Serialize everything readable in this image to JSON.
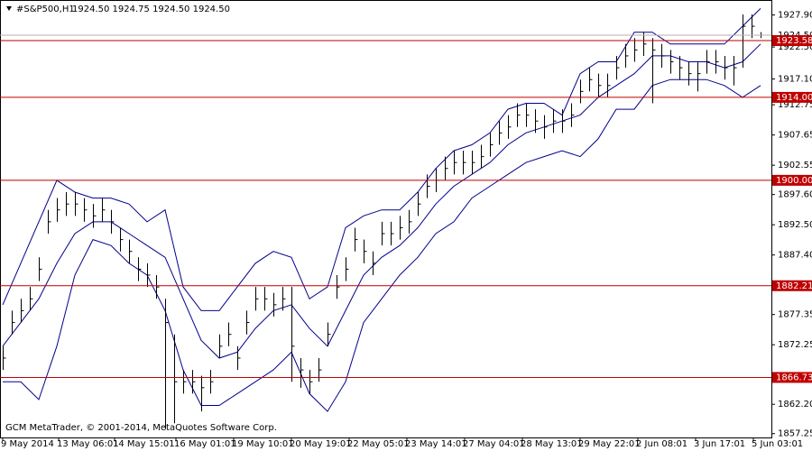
{
  "chart_data": {
    "type": "ohlc",
    "symbol": "#S&P500,H1",
    "quote": "1924.50 1924.75 1924.50 1924.50",
    "footer": "GCM MetaTrader, © 2001-2014, MetaQuotes Software Corp.",
    "bar_color": "#000000",
    "band_color": "#00008b",
    "level_color": "#c00000",
    "grid": false,
    "xlim": [
      -1.5,
      426
    ],
    "ylim": [
      1856.6,
      1930.43
    ],
    "xticks": [
      {
        "value": 0,
        "label": "9 May 2014"
      },
      {
        "value": 31,
        "label": "13 May 06:01"
      },
      {
        "value": 62,
        "label": "14 May 15:01"
      },
      {
        "value": 96,
        "label": "16 May 01:01"
      },
      {
        "value": 128,
        "label": "19 May 10:01"
      },
      {
        "value": 160,
        "label": "20 May 19:01"
      },
      {
        "value": 192,
        "label": "22 May 05:01"
      },
      {
        "value": 224,
        "label": "23 May 14:01"
      },
      {
        "value": 256,
        "label": "27 May 04:01"
      },
      {
        "value": 288,
        "label": "28 May 13:01"
      },
      {
        "value": 320,
        "label": "29 May 22:01"
      },
      {
        "value": 352,
        "label": "2 Jun 08:01"
      },
      {
        "value": 384,
        "label": "3 Jun 17:01"
      },
      {
        "value": 416,
        "label": "5 Jun 03:01"
      }
    ],
    "yticks": [
      {
        "value": 1927.9,
        "label": "1927.90"
      },
      {
        "value": 1922.5,
        "label": "1922.50"
      },
      {
        "value": 1917.1,
        "label": "1917.10"
      },
      {
        "value": 1912.75,
        "label": "1912.75"
      },
      {
        "value": 1907.65,
        "label": "1907.65"
      },
      {
        "value": 1902.55,
        "label": "1902.55"
      },
      {
        "value": 1897.6,
        "label": "1897.60"
      },
      {
        "value": 1892.5,
        "label": "1892.50"
      },
      {
        "value": 1887.4,
        "label": "1887.40"
      },
      {
        "value": 1877.35,
        "label": "1877.35"
      },
      {
        "value": 1872.25,
        "label": "1872.25"
      },
      {
        "value": 1862.2,
        "label": "1862.20"
      },
      {
        "value": 1857.25,
        "label": "1857.25"
      }
    ],
    "current": {
      "value": 1924.5,
      "label": "1924.50"
    },
    "levels": [
      {
        "value": 1923.58,
        "label": "1923.58"
      },
      {
        "value": 1914,
        "label": "1914.00"
      },
      {
        "value": 1900,
        "label": "1900.00"
      },
      {
        "value": 1882.21,
        "label": "1882.21"
      },
      {
        "value": 1866.73,
        "label": "1866.73"
      }
    ],
    "x": [
      0,
      5,
      10,
      15,
      20,
      25,
      30,
      35,
      40,
      45,
      50,
      55,
      60,
      65,
      70,
      75,
      80,
      85,
      90,
      95,
      100,
      105,
      110,
      115,
      120,
      125,
      130,
      135,
      140,
      145,
      150,
      155,
      160,
      165,
      170,
      175,
      180,
      185,
      190,
      195,
      200,
      205,
      210,
      215,
      220,
      225,
      230,
      235,
      240,
      245,
      250,
      255,
      260,
      265,
      270,
      275,
      280,
      285,
      290,
      295,
      300,
      305,
      310,
      315,
      320,
      325,
      330,
      335,
      340,
      345,
      350,
      355,
      360,
      365,
      370,
      375,
      380,
      385,
      390,
      395,
      400,
      405,
      410,
      415,
      420
    ],
    "high": [
      1872,
      1878,
      1880,
      1882,
      1887,
      1895,
      1897,
      1898,
      1898,
      1897,
      1896,
      1897,
      1895,
      1892,
      1890,
      1887,
      1886,
      1884,
      1880,
      1874,
      1868,
      1868,
      1867,
      1868,
      1874,
      1876,
      1872,
      1878,
      1882,
      1882,
      1881,
      1882,
      1882,
      1870,
      1868,
      1870,
      1876,
      1884,
      1887,
      1892,
      1890,
      1888,
      1893,
      1893,
      1894,
      1895,
      1898,
      1901,
      1902,
      1904,
      1905,
      1905,
      1905,
      1906,
      1908,
      1910,
      1911,
      1913,
      1913,
      1912,
      1911,
      1912,
      1912,
      1913,
      1917,
      1919,
      1918,
      1918,
      1921,
      1923,
      1924,
      1925,
      1924,
      1923,
      1922,
      1921,
      1920,
      1920,
      1922,
      1922,
      1921,
      1921,
      1928,
      1928,
      1925
    ],
    "low": [
      1868,
      1874,
      1876,
      1878,
      1883,
      1891,
      1893,
      1894,
      1894,
      1893,
      1892,
      1893,
      1891,
      1888,
      1886,
      1883,
      1882,
      1880,
      1858,
      1859,
      1864,
      1864,
      1861,
      1864,
      1870,
      1872,
      1868,
      1874,
      1878,
      1878,
      1877,
      1878,
      1866,
      1865,
      1864,
      1866,
      1872,
      1880,
      1883,
      1888,
      1886,
      1884,
      1889,
      1889,
      1890,
      1891,
      1894,
      1897,
      1898,
      1900,
      1901,
      1901,
      1901,
      1902,
      1904,
      1906,
      1907,
      1909,
      1909,
      1908,
      1907,
      1908,
      1908,
      1909,
      1913,
      1915,
      1914,
      1914,
      1917,
      1919,
      1920,
      1921,
      1913,
      1919,
      1918,
      1917,
      1916,
      1915,
      1918,
      1918,
      1917,
      1916,
      1919,
      1924,
      1924
    ],
    "close": [
      1870,
      1876,
      1878,
      1880,
      1885,
      1893,
      1895,
      1896,
      1896,
      1895,
      1894,
      1895,
      1893,
      1890,
      1888,
      1885,
      1884,
      1882,
      1876,
      1866,
      1866,
      1866,
      1865,
      1866,
      1872,
      1874,
      1870,
      1876,
      1880,
      1880,
      1879,
      1880,
      1872,
      1868,
      1866,
      1868,
      1874,
      1882,
      1885,
      1890,
      1888,
      1886,
      1891,
      1891,
      1892,
      1893,
      1896,
      1899,
      1900,
      1902,
      1903,
      1903,
      1903,
      1904,
      1906,
      1908,
      1909,
      1911,
      1911,
      1910,
      1909,
      1910,
      1910,
      1911,
      1915,
      1917,
      1916,
      1916,
      1919,
      1921,
      1922,
      1923,
      1922,
      1921,
      1920,
      1919,
      1918,
      1918,
      1920,
      1920,
      1919,
      1919,
      1926,
      1926,
      1924.5
    ],
    "bands": {
      "x": [
        0,
        10,
        20,
        30,
        40,
        50,
        60,
        70,
        80,
        90,
        100,
        110,
        120,
        130,
        140,
        150,
        160,
        170,
        180,
        190,
        200,
        210,
        220,
        230,
        240,
        250,
        260,
        270,
        280,
        290,
        300,
        310,
        320,
        330,
        340,
        350,
        360,
        370,
        380,
        390,
        400,
        410,
        420
      ],
      "upper": [
        1879,
        1886,
        1893,
        1900,
        1898,
        1897,
        1897,
        1896,
        1893,
        1895,
        1882,
        1878,
        1878,
        1882,
        1886,
        1888,
        1887,
        1880,
        1882,
        1892,
        1894,
        1895,
        1895,
        1898,
        1902,
        1905,
        1906,
        1908,
        1912,
        1913,
        1913,
        1911,
        1918,
        1920,
        1920,
        1925,
        1925,
        1923,
        1923,
        1923,
        1923,
        1926,
        1929
      ],
      "middle": [
        1872,
        1876,
        1880,
        1886,
        1891,
        1893,
        1893,
        1891,
        1889,
        1887,
        1880,
        1873,
        1870,
        1871,
        1875,
        1878,
        1879,
        1875,
        1872,
        1878,
        1884,
        1887,
        1889,
        1892,
        1896,
        1899,
        1901,
        1903,
        1906,
        1908,
        1909,
        1910,
        1911,
        1914,
        1916,
        1918,
        1921,
        1921,
        1920,
        1920,
        1919,
        1920,
        1923
      ],
      "lower": [
        1866,
        1866,
        1863,
        1872,
        1884,
        1890,
        1889,
        1886,
        1884,
        1878,
        1868,
        1862,
        1862,
        1864,
        1866,
        1868,
        1871,
        1864,
        1861,
        1866,
        1876,
        1880,
        1884,
        1887,
        1891,
        1893,
        1897,
        1899,
        1901,
        1903,
        1904,
        1905,
        1904,
        1907,
        1912,
        1912,
        1916,
        1917,
        1917,
        1917,
        1916,
        1914,
        1916
      ]
    }
  }
}
